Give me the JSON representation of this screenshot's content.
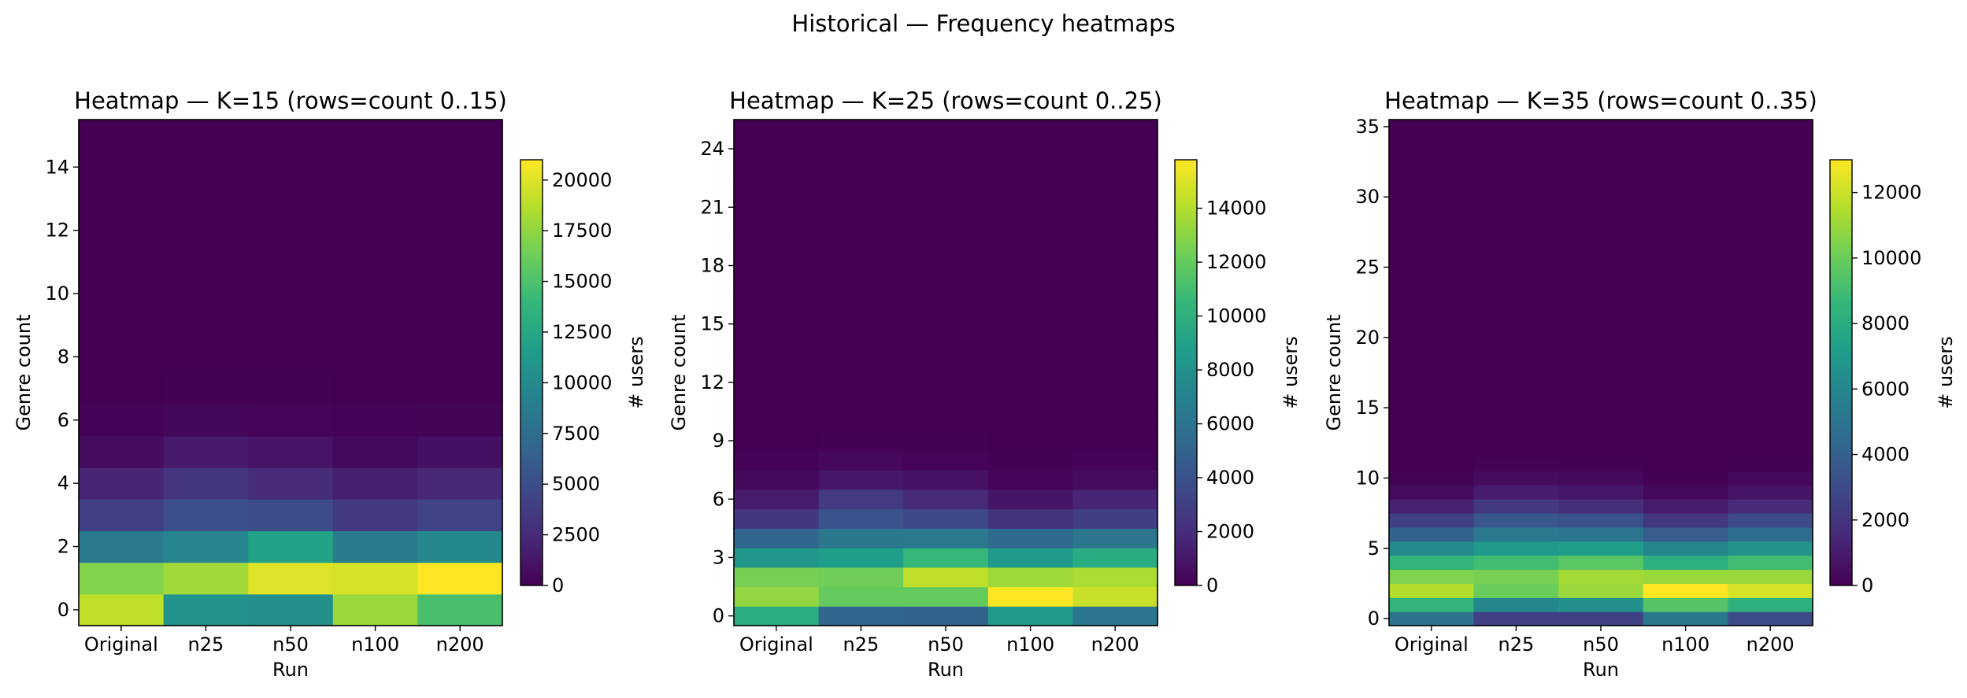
{
  "figure": {
    "title": "Historical — Frequency heatmaps"
  },
  "colormap": {
    "name": "viridis",
    "stops": [
      "#440154",
      "#482878",
      "#3e4989",
      "#31688e",
      "#26828e",
      "#1f9e89",
      "#35b779",
      "#6ece58",
      "#b5de2b",
      "#fde725"
    ]
  },
  "chart_data": [
    {
      "type": "heatmap",
      "title": "Heatmap — K=15 (rows=count 0..15)",
      "xlabel": "Run",
      "ylabel": "Genre count",
      "colorbar_label": "# users",
      "x": [
        "Original",
        "n25",
        "n50",
        "n100",
        "n200"
      ],
      "y_rows": [
        0,
        15
      ],
      "ytick_labels": [
        "0",
        "2",
        "4",
        "6",
        "8",
        "10",
        "12",
        "14"
      ],
      "ytick_values": [
        0,
        2,
        4,
        6,
        8,
        10,
        12,
        14
      ],
      "vmax": 21000,
      "colorbar_tick_labels": [
        "0",
        "2500",
        "5000",
        "7500",
        "10000",
        "12500",
        "15000",
        "17500",
        "20000"
      ],
      "colorbar_tick_values": [
        0,
        2500,
        5000,
        7500,
        10000,
        12500,
        15000,
        17500,
        20000
      ],
      "values": [
        [
          19000,
          10800,
          10500,
          17800,
          14800
        ],
        [
          17000,
          18000,
          20000,
          19700,
          21000
        ],
        [
          8500,
          9500,
          12000,
          8800,
          9800
        ],
        [
          4000,
          5200,
          4800,
          3500,
          4300
        ],
        [
          2200,
          3300,
          2600,
          1900,
          2400
        ],
        [
          600,
          1500,
          1100,
          500,
          900
        ],
        [
          100,
          350,
          200,
          100,
          150
        ],
        [
          0,
          50,
          30,
          0,
          20
        ],
        [
          0,
          0,
          0,
          0,
          0
        ],
        [
          0,
          0,
          0,
          0,
          0
        ],
        [
          0,
          0,
          0,
          0,
          0
        ],
        [
          0,
          0,
          0,
          0,
          0
        ],
        [
          0,
          0,
          0,
          0,
          0
        ],
        [
          0,
          0,
          0,
          0,
          0
        ],
        [
          0,
          0,
          0,
          0,
          0
        ],
        [
          0,
          0,
          0,
          0,
          0
        ]
      ]
    },
    {
      "type": "heatmap",
      "title": "Heatmap — K=25 (rows=count 0..25)",
      "xlabel": "Run",
      "ylabel": "Genre count",
      "colorbar_label": "# users",
      "x": [
        "Original",
        "n25",
        "n50",
        "n100",
        "n200"
      ],
      "y_rows": [
        0,
        25
      ],
      "ytick_labels": [
        "0",
        "3",
        "6",
        "9",
        "12",
        "15",
        "18",
        "21",
        "24"
      ],
      "ytick_values": [
        0,
        3,
        6,
        9,
        12,
        15,
        18,
        21,
        24
      ],
      "vmax": 15800,
      "colorbar_tick_labels": [
        "0",
        "2000",
        "4000",
        "6000",
        "8000",
        "10000",
        "12000",
        "14000"
      ],
      "colorbar_tick_values": [
        0,
        2000,
        4000,
        6000,
        8000,
        10000,
        12000,
        14000
      ],
      "values": [
        [
          9800,
          5200,
          5000,
          8600,
          6200
        ],
        [
          13200,
          12000,
          12000,
          15800,
          14500
        ],
        [
          12500,
          12300,
          14300,
          13500,
          13800
        ],
        [
          8300,
          8800,
          10500,
          8500,
          9700
        ],
        [
          5200,
          6300,
          6400,
          5400,
          6200
        ],
        [
          2500,
          4100,
          3500,
          2300,
          3000
        ],
        [
          1200,
          2700,
          1900,
          900,
          1600
        ],
        [
          400,
          1000,
          700,
          200,
          500
        ],
        [
          100,
          300,
          150,
          50,
          100
        ],
        [
          0,
          50,
          30,
          0,
          20
        ],
        [
          0,
          0,
          0,
          0,
          0
        ],
        [
          0,
          0,
          0,
          0,
          0
        ],
        [
          0,
          0,
          0,
          0,
          0
        ],
        [
          0,
          0,
          0,
          0,
          0
        ],
        [
          0,
          0,
          0,
          0,
          0
        ],
        [
          0,
          0,
          0,
          0,
          0
        ],
        [
          0,
          0,
          0,
          0,
          0
        ],
        [
          0,
          0,
          0,
          0,
          0
        ],
        [
          0,
          0,
          0,
          0,
          0
        ],
        [
          0,
          0,
          0,
          0,
          0
        ],
        [
          0,
          0,
          0,
          0,
          0
        ],
        [
          0,
          0,
          0,
          0,
          0
        ],
        [
          0,
          0,
          0,
          0,
          0
        ],
        [
          0,
          0,
          0,
          0,
          0
        ],
        [
          0,
          0,
          0,
          0,
          0
        ],
        [
          0,
          0,
          0,
          0,
          0
        ]
      ]
    },
    {
      "type": "heatmap",
      "title": "Heatmap — K=35 (rows=count 0..35)",
      "xlabel": "Run",
      "ylabel": "Genre count",
      "colorbar_label": "# users",
      "x": [
        "Original",
        "n25",
        "n50",
        "n100",
        "n200"
      ],
      "y_rows": [
        0,
        35
      ],
      "ytick_labels": [
        "0",
        "5",
        "10",
        "15",
        "20",
        "25",
        "30",
        "35"
      ],
      "ytick_values": [
        0,
        5,
        10,
        15,
        20,
        25,
        30,
        35
      ],
      "vmax": 13000,
      "colorbar_tick_labels": [
        "0",
        "2000",
        "4000",
        "6000",
        "8000",
        "10000",
        "12000"
      ],
      "colorbar_tick_values": [
        0,
        2000,
        4000,
        6000,
        8000,
        10000,
        12000
      ],
      "values": [
        [
          5000,
          2500,
          2500,
          5200,
          3000
        ],
        [
          8500,
          6000,
          6500,
          9500,
          8200
        ],
        [
          11500,
          10000,
          11000,
          13000,
          12200
        ],
        [
          10500,
          10300,
          11200,
          11000,
          11000
        ],
        [
          8500,
          9000,
          9600,
          8200,
          9000
        ],
        [
          6200,
          7000,
          7300,
          6000,
          6700
        ],
        [
          4100,
          5300,
          5100,
          3800,
          4600
        ],
        [
          2500,
          3600,
          3300,
          2100,
          3000
        ],
        [
          1200,
          2200,
          1800,
          1000,
          1600
        ],
        [
          400,
          1000,
          800,
          300,
          700
        ],
        [
          100,
          400,
          300,
          50,
          250
        ],
        [
          0,
          100,
          50,
          0,
          50
        ],
        [
          0,
          0,
          0,
          0,
          0
        ],
        [
          0,
          0,
          0,
          0,
          0
        ],
        [
          0,
          0,
          0,
          0,
          0
        ],
        [
          0,
          0,
          0,
          0,
          0
        ],
        [
          0,
          0,
          0,
          0,
          0
        ],
        [
          0,
          0,
          0,
          0,
          0
        ],
        [
          0,
          0,
          0,
          0,
          0
        ],
        [
          0,
          0,
          0,
          0,
          0
        ],
        [
          0,
          0,
          0,
          0,
          0
        ],
        [
          0,
          0,
          0,
          0,
          0
        ],
        [
          0,
          0,
          0,
          0,
          0
        ],
        [
          0,
          0,
          0,
          0,
          0
        ],
        [
          0,
          0,
          0,
          0,
          0
        ],
        [
          0,
          0,
          0,
          0,
          0
        ],
        [
          0,
          0,
          0,
          0,
          0
        ],
        [
          0,
          0,
          0,
          0,
          0
        ],
        [
          0,
          0,
          0,
          0,
          0
        ],
        [
          0,
          0,
          0,
          0,
          0
        ],
        [
          0,
          0,
          0,
          0,
          0
        ],
        [
          0,
          0,
          0,
          0,
          0
        ],
        [
          0,
          0,
          0,
          0,
          0
        ],
        [
          0,
          0,
          0,
          0,
          0
        ],
        [
          0,
          0,
          0,
          0,
          0
        ],
        [
          0,
          0,
          0,
          0,
          0
        ]
      ]
    }
  ]
}
